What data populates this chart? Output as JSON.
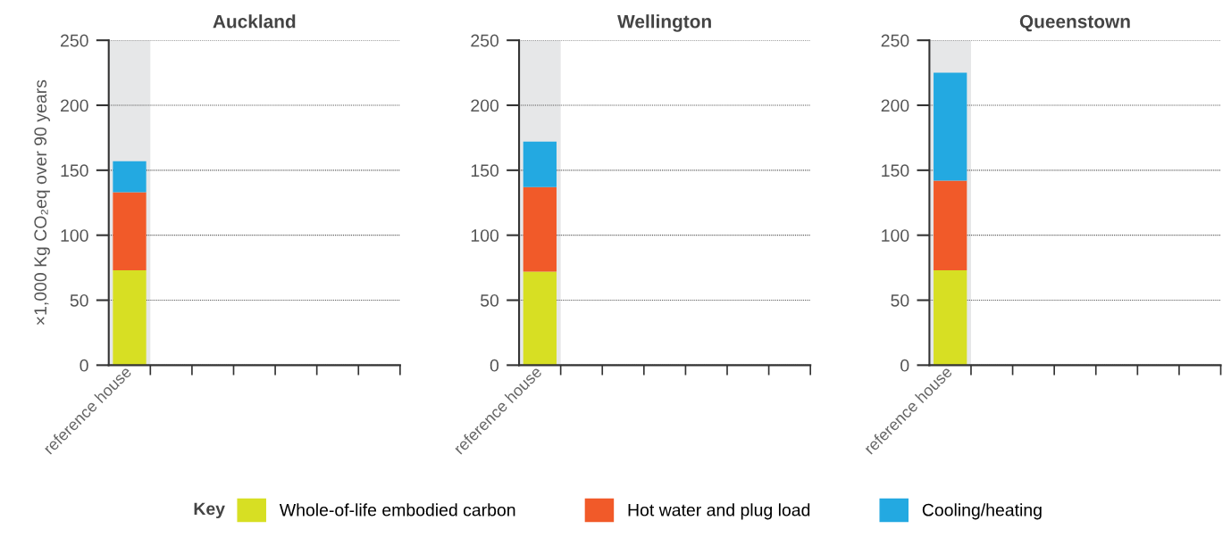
{
  "chart_data": [
    {
      "type": "bar",
      "title": "Auckland",
      "ylabel": "×1,000 Kg CO₂eq over 90 years",
      "stacked": true,
      "categories": [
        "reference house",
        null,
        null,
        null,
        null,
        null,
        null
      ],
      "series": [
        {
          "name": "Whole-of-life embodied carbon",
          "color": "#d7df23",
          "values": [
            73,
            null,
            null,
            null,
            null,
            null,
            null
          ]
        },
        {
          "name": "Hot water and plug load",
          "color": "#f15a29",
          "values": [
            60,
            null,
            null,
            null,
            null,
            null,
            null
          ]
        },
        {
          "name": "Cooling/heating",
          "color": "#23a9e1",
          "values": [
            24,
            null,
            null,
            null,
            null,
            null,
            null
          ]
        }
      ],
      "ylim": [
        0,
        250
      ],
      "yticks": [
        0,
        50,
        100,
        150,
        200,
        250
      ],
      "grid": "y",
      "bands": [
        {
          "axis": "x",
          "from": "reference house",
          "to": "reference house",
          "color": "#e6e7e8"
        }
      ],
      "legend": "bottom",
      "legend_title": "Key"
    },
    {
      "type": "bar",
      "title": "Wellington",
      "stacked": true,
      "categories": [
        "reference house",
        null,
        null,
        null,
        null,
        null,
        null
      ],
      "series": [
        {
          "color": "#d7df23",
          "values": [
            72,
            null,
            null,
            null,
            null,
            null,
            null
          ]
        },
        {
          "color": "#f15a29",
          "values": [
            65,
            null,
            null,
            null,
            null,
            null,
            null
          ]
        },
        {
          "color": "#23a9e1",
          "values": [
            35,
            null,
            null,
            null,
            null,
            null,
            null
          ]
        }
      ],
      "ylim": [
        0,
        250
      ],
      "yticks": [
        0,
        50,
        100,
        150,
        200,
        250
      ],
      "grid": "y",
      "bands": [
        {
          "axis": "x",
          "from": "reference house",
          "to": "reference house",
          "color": "#e6e7e8"
        }
      ]
    },
    {
      "type": "bar",
      "title": "Queenstown",
      "stacked": true,
      "categories": [
        "reference house",
        null,
        null,
        null,
        null,
        null,
        null
      ],
      "series": [
        {
          "color": "#d7df23",
          "values": [
            73,
            null,
            null,
            null,
            null,
            null,
            null
          ]
        },
        {
          "color": "#f15a29",
          "values": [
            69,
            null,
            null,
            null,
            null,
            null,
            null
          ]
        },
        {
          "color": "#23a9e1",
          "values": [
            83,
            null,
            null,
            null,
            null,
            null,
            null
          ]
        }
      ],
      "ylim": [
        0,
        250
      ],
      "yticks": [
        0,
        50,
        100,
        150,
        200,
        250
      ],
      "grid": "y",
      "bands": [
        {
          "axis": "x",
          "from": "reference house",
          "to": "reference house",
          "color": "#e6e7e8"
        }
      ]
    }
  ]
}
